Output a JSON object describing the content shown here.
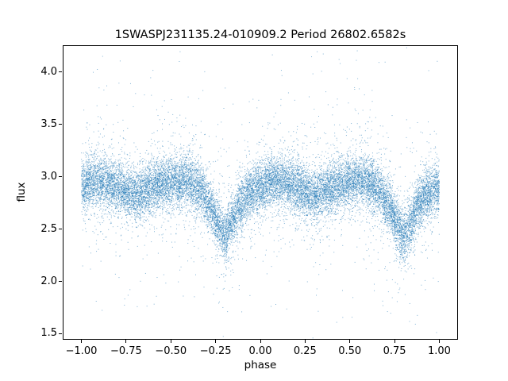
{
  "figure": {
    "background": "#ffffff",
    "frame_color": "#000000"
  },
  "chart_data": {
    "type": "scatter",
    "title": "1SWASPJ231135.24-010909.2 Period 26802.6582s",
    "xlabel": "phase",
    "ylabel": "flux",
    "xlim": [
      -1.1,
      1.1
    ],
    "ylim": [
      1.45,
      4.25
    ],
    "x_range": [
      -1.0,
      1.0
    ],
    "xtick_values": [
      -1.0,
      -0.75,
      -0.5,
      -0.25,
      0.0,
      0.25,
      0.5,
      0.75,
      1.0
    ],
    "xtick_labels": [
      "−1.00",
      "−0.75",
      "−0.50",
      "−0.25",
      "0.00",
      "0.25",
      "0.50",
      "0.75",
      "1.00"
    ],
    "ytick_values": [
      1.5,
      2.0,
      2.5,
      3.0,
      3.5,
      4.0
    ],
    "ytick_labels": [
      "1.5",
      "2.0",
      "2.5",
      "3.0",
      "3.5",
      "4.0"
    ],
    "grid": false,
    "legend": null,
    "marker_color": "#1f77b4",
    "marker_alpha": 0.55,
    "n_points": 20000,
    "period": 1.0,
    "mean_curve": {
      "phase": [
        0.0,
        0.05,
        0.12,
        0.2,
        0.3,
        0.4,
        0.5,
        0.58,
        0.66,
        0.72,
        0.76,
        0.8,
        0.84,
        0.88,
        0.94,
        1.0
      ],
      "flux": [
        2.9,
        2.95,
        2.95,
        2.9,
        2.82,
        2.9,
        2.95,
        2.96,
        2.88,
        2.72,
        2.55,
        2.43,
        2.55,
        2.72,
        2.85,
        2.9
      ]
    },
    "noise": {
      "core_sigma": 0.12,
      "core_frac": 0.86,
      "mid_sigma": 0.28,
      "mid_frac": 0.1,
      "tail_sigma": 0.6
    },
    "features": {
      "primary_minimum_phases": [
        -0.2,
        0.8
      ],
      "primary_minimum_flux": 2.43,
      "secondary_minimum_phases": [
        -0.7,
        0.3
      ],
      "secondary_minimum_flux": 2.82,
      "maximum_flux": 2.96,
      "mean_out_of_eclipse_flux": 2.9
    }
  }
}
